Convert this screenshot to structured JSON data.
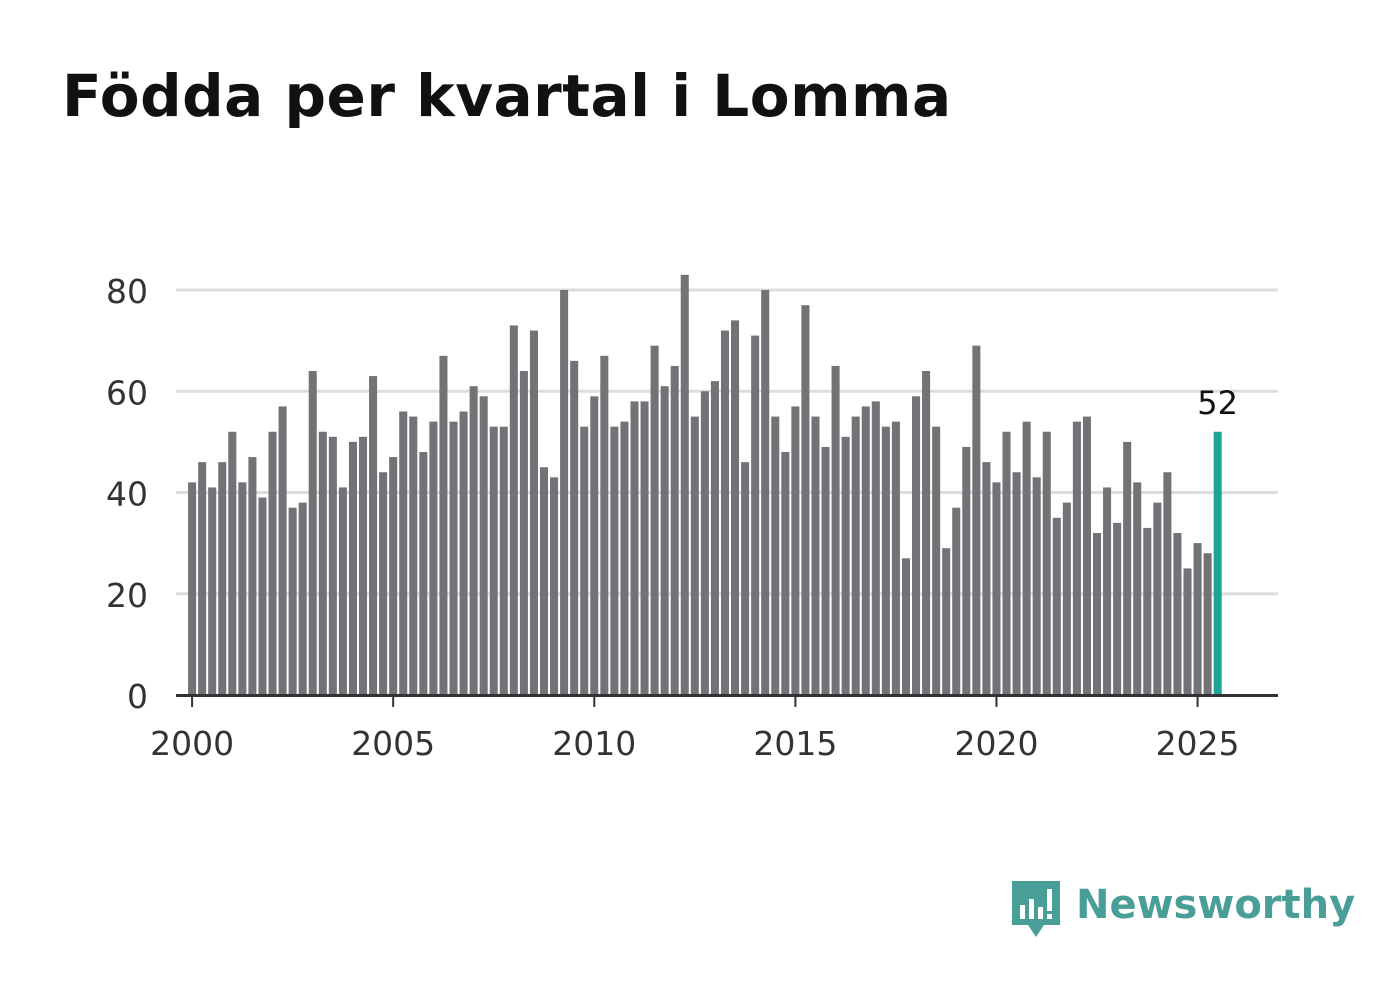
{
  "title": "Födda per kvartal i Lomma",
  "brand": {
    "name": "Newsworthy",
    "icon": "bar-chart-speech-bubble-icon",
    "color": "#4a9e98"
  },
  "colors": {
    "bar": "#737277",
    "highlight": "#1aa597",
    "grid": "#dddddd",
    "axis": "#333333",
    "text": "#333333"
  },
  "chart_data": {
    "type": "bar",
    "title": "Födda per kvartal i Lomma",
    "xlabel": "",
    "ylabel": "",
    "ylim": [
      0,
      80
    ],
    "yticks": [
      0,
      20,
      40,
      60,
      80
    ],
    "xticks": [
      2000,
      2005,
      2010,
      2015,
      2020,
      2025
    ],
    "xlim": [
      1999.6,
      2027.0
    ],
    "start_year": 2000,
    "grid": true,
    "highlight_label": "52",
    "highlight_index": 102,
    "values": [
      42,
      46,
      41,
      46,
      52,
      42,
      47,
      39,
      52,
      57,
      37,
      38,
      64,
      52,
      51,
      41,
      50,
      51,
      63,
      44,
      47,
      56,
      55,
      48,
      54,
      67,
      54,
      56,
      61,
      59,
      53,
      53,
      73,
      64,
      72,
      45,
      43,
      80,
      66,
      53,
      59,
      67,
      53,
      54,
      58,
      58,
      69,
      61,
      65,
      83,
      55,
      60,
      62,
      72,
      74,
      46,
      71,
      80,
      55,
      48,
      57,
      77,
      55,
      49,
      65,
      51,
      55,
      57,
      58,
      53,
      54,
      27,
      59,
      64,
      53,
      29,
      37,
      49,
      69,
      46,
      42,
      52,
      44,
      54,
      43,
      52,
      35,
      38,
      54,
      55,
      32,
      41,
      34,
      50,
      42,
      33,
      38,
      44,
      32,
      25,
      30,
      28,
      52
    ]
  }
}
